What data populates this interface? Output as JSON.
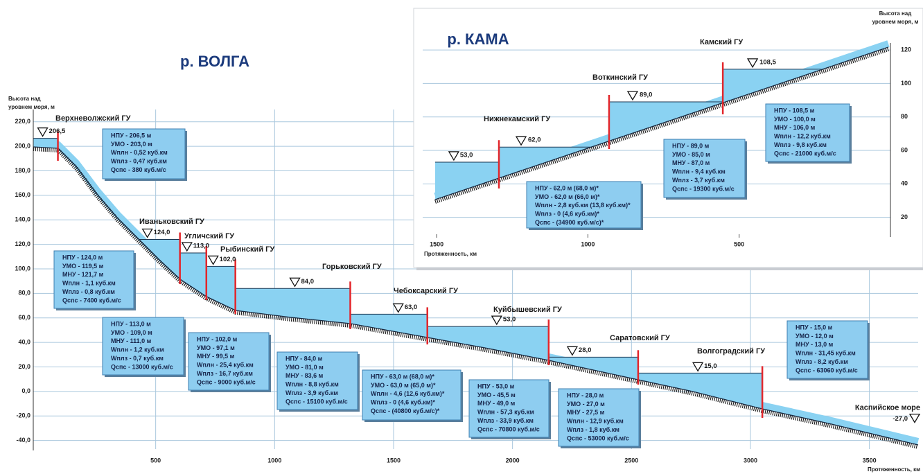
{
  "volga": {
    "title": "р. ВОЛГА",
    "y_axis_label": [
      "Высота над",
      "уровнем моря, м"
    ],
    "x_axis_label": "Протяженность, км",
    "xlim": [
      0,
      3705
    ],
    "ylim": [
      -47,
      230
    ],
    "yticks": [
      {
        "value": 220,
        "label": "220,0"
      },
      {
        "value": 200,
        "label": "200,0"
      },
      {
        "value": 180,
        "label": "180,0"
      },
      {
        "value": 160,
        "label": "160,0"
      },
      {
        "value": 140,
        "label": "140,0"
      },
      {
        "value": 120,
        "label": "120,0"
      },
      {
        "value": 100,
        "label": "100,0"
      },
      {
        "value": 80,
        "label": "80,0"
      },
      {
        "value": 60,
        "label": "60,0"
      },
      {
        "value": 40,
        "label": "40,0"
      },
      {
        "value": 20,
        "label": "20,0"
      },
      {
        "value": 0,
        "label": "0,0"
      },
      {
        "value": -20,
        "label": "-20,0"
      },
      {
        "value": -40,
        "label": "-40,0"
      }
    ],
    "xticks": [
      500,
      1000,
      1500,
      2000,
      2500,
      3000,
      3500
    ],
    "grid": true,
    "dams": [
      {
        "name": "Верхневолжский ГУ",
        "km": 89,
        "level": 206.5,
        "level_label": "206,5",
        "info": [
          "НПУ - 206,5 м",
          "УМО - 203,0 м",
          "Wплн - 0,52 куб.км",
          "Wплз - 0,47 куб.км",
          "Qспс - 380 куб.м/с"
        ]
      },
      {
        "name": "Иваньковский ГУ",
        "km": 602,
        "level": 124,
        "level_label": "124,0",
        "info": [
          "НПУ - 124,0 м",
          "УМО - 119,5 м",
          "МНУ - 121,7 м",
          "Wплн - 1,1 куб.км",
          "Wплз - 0,8 куб.км",
          "Qспс - 7400 куб.м/с"
        ]
      },
      {
        "name": "Угличский ГУ",
        "km": 713,
        "level": 113,
        "level_label": "113,0",
        "info": [
          "НПУ - 113,0 м",
          "УМО - 109,0 м",
          "МНУ - 111,0 м",
          "Wплн - 1,2 куб.км",
          "Wплз - 0,7 куб.км",
          "Qспс - 13000 куб.м/с"
        ]
      },
      {
        "name": "Рыбинский ГУ",
        "km": 835,
        "level": 102,
        "level_label": "102,0",
        "info": [
          "НПУ - 102,0 м",
          "УМО - 97,1 м",
          "МНУ - 99,5 м",
          "Wплн - 25,4 куб.км",
          "Wплз - 16,7 куб.км",
          "Qспс - 9000 куб.м/с"
        ]
      },
      {
        "name": "Горьковский ГУ",
        "km": 1318,
        "level": 84,
        "level_label": "84,0",
        "info": [
          "НПУ - 84,0 м",
          "УМО - 81,0 м",
          "МНУ - 83,6 м",
          "Wплн - 8,8 куб.км",
          "Wплз - 3,9 куб.км",
          "Qспс - 15100 куб.м/с"
        ]
      },
      {
        "name": "Чебоксарский ГУ",
        "km": 1642,
        "level": 63,
        "level_label": "63,0",
        "info": [
          "НПУ - 63,0 м (68,0 м)*",
          "УМО - 63,0 м (65,0 м)*",
          "Wплн - 4,6 (12,6 куб.км)*",
          "Wплз - 0 (4,6 куб.км)*",
          "Qспс - (40800 куб.м/с)*"
        ]
      },
      {
        "name": "Куйбышевский ГУ",
        "km": 2152,
        "level": 53,
        "level_label": "53,0",
        "info": [
          "НПУ - 53,0 м",
          "УМО - 45,5 м",
          "МНУ - 49,0 м",
          "Wплн - 57,3 куб.км",
          "Wплз - 33,9 куб.км",
          "Qспс - 70800 куб.м/с"
        ]
      },
      {
        "name": "Саратовский ГУ",
        "km": 2528,
        "level": 28,
        "level_label": "28,0",
        "info": [
          "НПУ - 28,0 м",
          "УМО - 27,0 м",
          "МНУ - 27,5 м",
          "Wплн - 12,9 куб.км",
          "Wплз - 1,8 куб.км",
          "Qспс - 53000 куб.м/с"
        ]
      },
      {
        "name": "Волгоградский ГУ",
        "km": 3050,
        "level": 15,
        "level_label": "15,0",
        "info": [
          "НПУ - 15,0 м",
          "УМО - 12,0 м",
          "МНУ - 13,0 м",
          "Wплн - 31,45 куб.км",
          "Wплз - 8,2 куб.км",
          "Qспс - 63060 куб.м/с"
        ]
      }
    ],
    "sea": {
      "name": "Каспийское море",
      "level": -27,
      "level_label": "-27,0"
    }
  },
  "kama": {
    "title": "р. КАМА",
    "y_axis_label": [
      "Высота над",
      "уровнем моря, м"
    ],
    "x_axis_label": "Протяженность, км",
    "xlim": [
      1546,
      0
    ],
    "ylim": [
      0,
      125
    ],
    "yticks": [
      20,
      40,
      60,
      80,
      100,
      120
    ],
    "xticks": [
      1500,
      1000,
      500
    ],
    "mouth": {
      "km": 1505,
      "level": 53,
      "level_label": "53,0"
    },
    "dams": [
      {
        "name": "Нижнекамский ГУ",
        "km": 1294,
        "level": 62,
        "level_label": "62,0",
        "info": [
          "НПУ - 62,0 м (68,0 м)*",
          "УМО - 62,0 м (66,0 м)*",
          "Wплн - 2,8 куб.км (13,8 куб.км)*",
          "Wплз - 0 (4,6 куб.км)*",
          "Qспс - (34900 куб.м/с)*"
        ]
      },
      {
        "name": "Воткинский ГУ",
        "km": 930,
        "level": 89,
        "level_label": "89,0",
        "info": [
          "НПУ - 89,0 м",
          "УМО - 85,0 м",
          "МНУ - 87,0 м",
          "Wплн - 9,4 куб.км",
          "Wплз - 3,7 куб.км",
          "Qспс - 19300 куб.м/с"
        ]
      },
      {
        "name": "Камский ГУ",
        "km": 554,
        "level": 108.5,
        "level_label": "108,5",
        "info": [
          "НПУ - 108,5 м",
          "УМО - 100,0 м",
          "МНУ - 106,0 м",
          "Wплн - 12,2 куб.км",
          "Wплз - 9,8 куб.км",
          "Qспс - 21000 куб.м/с"
        ]
      }
    ]
  }
}
